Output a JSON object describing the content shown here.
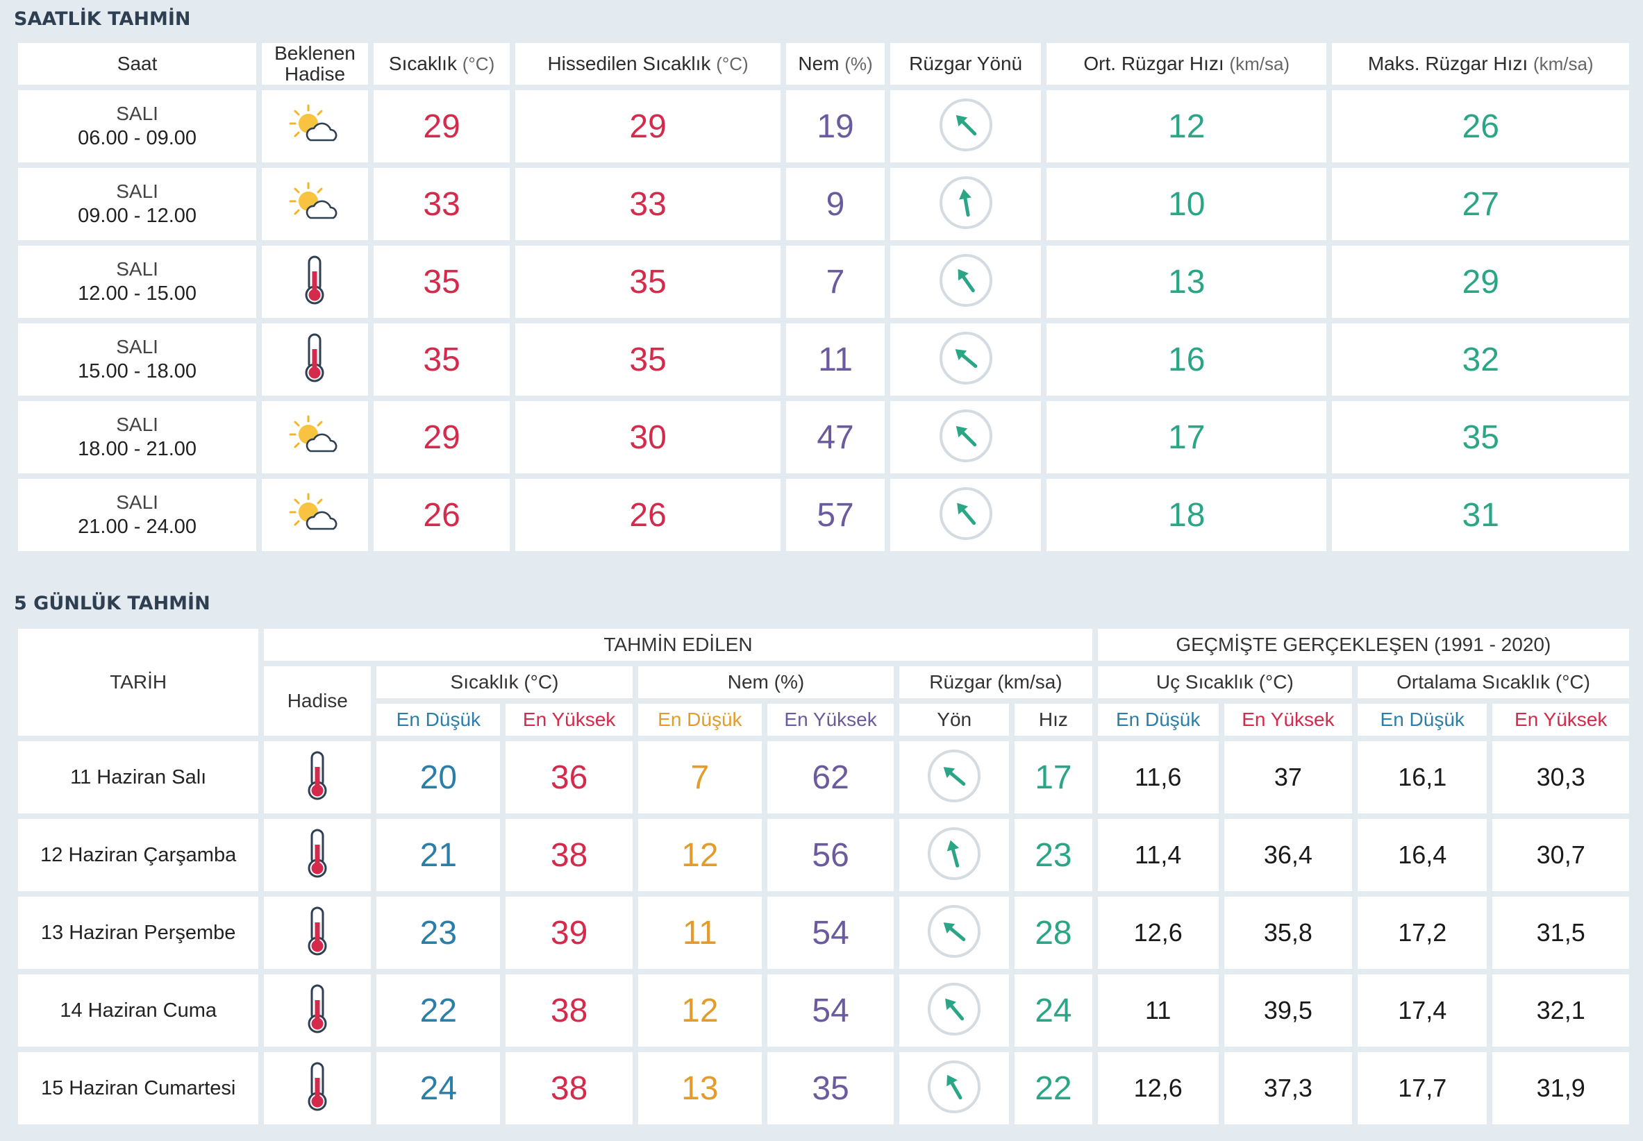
{
  "hourly": {
    "title": "SAATLİK TAHMİN",
    "headers": {
      "saat": "Saat",
      "beklenen": "Beklenen Hadise",
      "sicaklik": "Sıcaklık",
      "sicaklik_unit": "(°C)",
      "hissedilen": "Hissedilen Sıcaklık",
      "hissedilen_unit": "(°C)",
      "nem": "Nem",
      "nem_unit": "(%)",
      "ruzgar_yonu": "Rüzgar Yönü",
      "ort_ruzgar": "Ort. Rüzgar Hızı",
      "ort_ruzgar_unit": "(km/sa)",
      "maks_ruzgar": "Maks. Rüzgar Hızı",
      "maks_ruzgar_unit": "(km/sa)"
    },
    "rows": [
      {
        "day": "SALI",
        "time": "06.00 - 09.00",
        "icon": "partly-cloudy-icon",
        "temp": "29",
        "feels": "29",
        "humidity": "19",
        "wind_dir": "south-east",
        "wind_angle": 135,
        "avg": "12",
        "max": "26"
      },
      {
        "day": "SALI",
        "time": "09.00 - 12.00",
        "icon": "partly-cloudy-icon",
        "temp": "33",
        "feels": "33",
        "humidity": "9",
        "wind_dir": "south",
        "wind_angle": 170,
        "avg": "10",
        "max": "27"
      },
      {
        "day": "SALI",
        "time": "12.00 - 15.00",
        "icon": "thermometer-icon",
        "temp": "35",
        "feels": "35",
        "humidity": "7",
        "wind_dir": "south-east",
        "wind_angle": 145,
        "avg": "13",
        "max": "29"
      },
      {
        "day": "SALI",
        "time": "15.00 - 18.00",
        "icon": "thermometer-icon",
        "temp": "35",
        "feels": "35",
        "humidity": "11",
        "wind_dir": "south-east",
        "wind_angle": 130,
        "avg": "16",
        "max": "32"
      },
      {
        "day": "SALI",
        "time": "18.00 - 21.00",
        "icon": "partly-cloudy-icon",
        "temp": "29",
        "feels": "30",
        "humidity": "47",
        "wind_dir": "south-east",
        "wind_angle": 135,
        "avg": "17",
        "max": "35"
      },
      {
        "day": "SALI",
        "time": "21.00 - 24.00",
        "icon": "partly-cloudy-icon",
        "temp": "26",
        "feels": "26",
        "humidity": "57",
        "wind_dir": "south-east",
        "wind_angle": 140,
        "avg": "18",
        "max": "31"
      }
    ]
  },
  "daily": {
    "title": "5 GÜNLÜK TAHMİN",
    "headers": {
      "tarih": "TARİH",
      "tahmin": "TAHMİN EDİLEN",
      "gecmis": "GEÇMİŞTE GERÇEKLEŞEN (1991 - 2020)",
      "hadise": "Hadise",
      "sicaklik": "Sıcaklık (°C)",
      "nem": "Nem (%)",
      "ruzgar": "Rüzgar (km/sa)",
      "uc_sicaklik": "Uç Sıcaklık (°C)",
      "ort_sicaklik": "Ortalama Sıcaklık (°C)",
      "en_dusuk": "En Düşük",
      "en_yuksek": "En Yüksek",
      "yon": "Yön",
      "hiz": "Hız"
    },
    "rows": [
      {
        "date": "11 Haziran Salı",
        "icon": "thermometer-icon",
        "tmin": "20",
        "tmax": "36",
        "hmin": "7",
        "hmax": "62",
        "wind_angle": 130,
        "speed": "17",
        "uc_min": "11,6",
        "uc_max": "37",
        "ort_min": "16,1",
        "ort_max": "30,3"
      },
      {
        "date": "12 Haziran Çarşamba",
        "icon": "thermometer-icon",
        "tmin": "21",
        "tmax": "38",
        "hmin": "12",
        "hmax": "56",
        "wind_angle": 165,
        "speed": "23",
        "uc_min": "11,4",
        "uc_max": "36,4",
        "ort_min": "16,4",
        "ort_max": "30,7"
      },
      {
        "date": "13 Haziran Perşembe",
        "icon": "thermometer-icon",
        "tmin": "23",
        "tmax": "39",
        "hmin": "11",
        "hmax": "54",
        "wind_angle": 130,
        "speed": "28",
        "uc_min": "12,6",
        "uc_max": "35,8",
        "ort_min": "17,2",
        "ort_max": "31,5"
      },
      {
        "date": "14 Haziran Cuma",
        "icon": "thermometer-icon",
        "tmin": "22",
        "tmax": "38",
        "hmin": "12",
        "hmax": "54",
        "wind_angle": 140,
        "speed": "24",
        "uc_min": "11",
        "uc_max": "39,5",
        "ort_min": "17,4",
        "ort_max": "32,1"
      },
      {
        "date": "15 Haziran Cumartesi",
        "icon": "thermometer-icon",
        "tmin": "24",
        "tmax": "38",
        "hmin": "13",
        "hmax": "35",
        "wind_angle": 150,
        "speed": "22",
        "uc_min": "12,6",
        "uc_max": "37,3",
        "ort_min": "17,7",
        "ort_max": "31,9"
      }
    ]
  },
  "colors": {
    "temp": "#d42a4b",
    "humidity": "#6b5a9e",
    "wind": "#2aa585",
    "low_temp": "#2b7ea8",
    "low_humidity": "#e39c2b",
    "title": "#2f3f52",
    "background": "#e3eaf0"
  }
}
